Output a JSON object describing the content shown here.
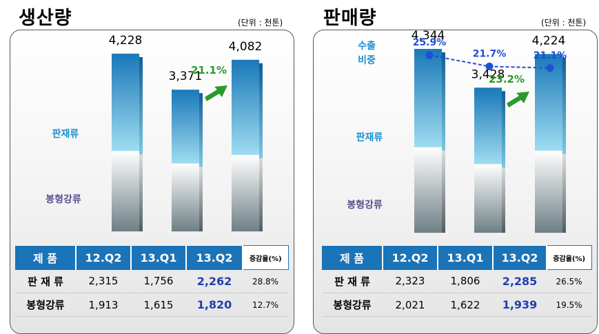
{
  "colors": {
    "accent_blue": "#1b73b8",
    "upper_bar_dark": "#1a78b8",
    "upper_bar_light": "#9fdcf0",
    "lower_bar": "#6e7f85",
    "growth_green": "#2b9a2b",
    "export_ratio_blue": "#1f4fd6",
    "label_blue": "#1a8fd0",
    "label_purple": "#5a4f8f",
    "highlight_value": "#1f3fae"
  },
  "production": {
    "title": "생산량",
    "unit": "(단위 : 천톤)",
    "label_upper": "판재류",
    "label_lower": "봉형강류",
    "growth_label": "21.1%",
    "growth_arrow_icon": "green-up-arrow-icon",
    "totals": [
      "4,228",
      "3,371",
      "4,082"
    ],
    "table": {
      "headers": [
        "제  품",
        "12.Q2",
        "13.Q1",
        "13.Q2",
        "증감율(%)"
      ],
      "rows": [
        {
          "label": "판 재 류",
          "values": [
            "2,315",
            "1,756",
            "2,262"
          ],
          "rate": "28.8%"
        },
        {
          "label": "봉형강류",
          "values": [
            "1,913",
            "1,615",
            "1,820"
          ],
          "rate": "12.7%"
        }
      ]
    }
  },
  "sales": {
    "title": "판매량",
    "unit": "(단위 : 천톤)",
    "label_upper": "판재류",
    "label_lower": "봉형강류",
    "export_label_line1": "수출",
    "export_label_line2": "비중",
    "export_ratio_labels": [
      "25.9%",
      "21.7%",
      "21.1%"
    ],
    "growth_label": "23.2%",
    "growth_arrow_icon": "green-up-arrow-icon",
    "totals": [
      "4,344",
      "3,428",
      "4,224"
    ],
    "table": {
      "headers": [
        "제  품",
        "12.Q2",
        "13.Q1",
        "13.Q2",
        "증감율(%)"
      ],
      "rows": [
        {
          "label": "판 재 류",
          "values": [
            "2,323",
            "1,806",
            "2,285"
          ],
          "rate": "26.5%"
        },
        {
          "label": "봉형강류",
          "values": [
            "2,021",
            "1,622",
            "1,939"
          ],
          "rate": "19.5%"
        }
      ]
    }
  },
  "chart_data": [
    {
      "type": "bar",
      "title": "생산량",
      "unit": "(단위 : 천톤)",
      "stacked": true,
      "categories": [
        "12.Q2",
        "13.Q1",
        "13.Q2"
      ],
      "series": [
        {
          "name": "판재류",
          "values": [
            2315,
            1756,
            2262
          ]
        },
        {
          "name": "봉형강류",
          "values": [
            1913,
            1615,
            1820
          ]
        }
      ],
      "totals": [
        4228,
        3371,
        4082
      ],
      "annotations": [
        "21.1%"
      ],
      "ylim": [
        0,
        4800
      ]
    },
    {
      "type": "bar",
      "title": "판매량",
      "unit": "(단위 : 천톤)",
      "stacked": true,
      "categories": [
        "12.Q2",
        "13.Q1",
        "13.Q2"
      ],
      "series": [
        {
          "name": "판재류",
          "values": [
            2323,
            1806,
            2285
          ]
        },
        {
          "name": "봉형강류",
          "values": [
            2021,
            1622,
            1939
          ]
        }
      ],
      "totals": [
        4344,
        3428,
        4224
      ],
      "line_series": {
        "name": "수출 비중",
        "values": [
          25.9,
          21.7,
          21.1
        ],
        "unit": "%"
      },
      "annotations": [
        "23.2%"
      ],
      "ylim": [
        0,
        4800
      ]
    }
  ]
}
